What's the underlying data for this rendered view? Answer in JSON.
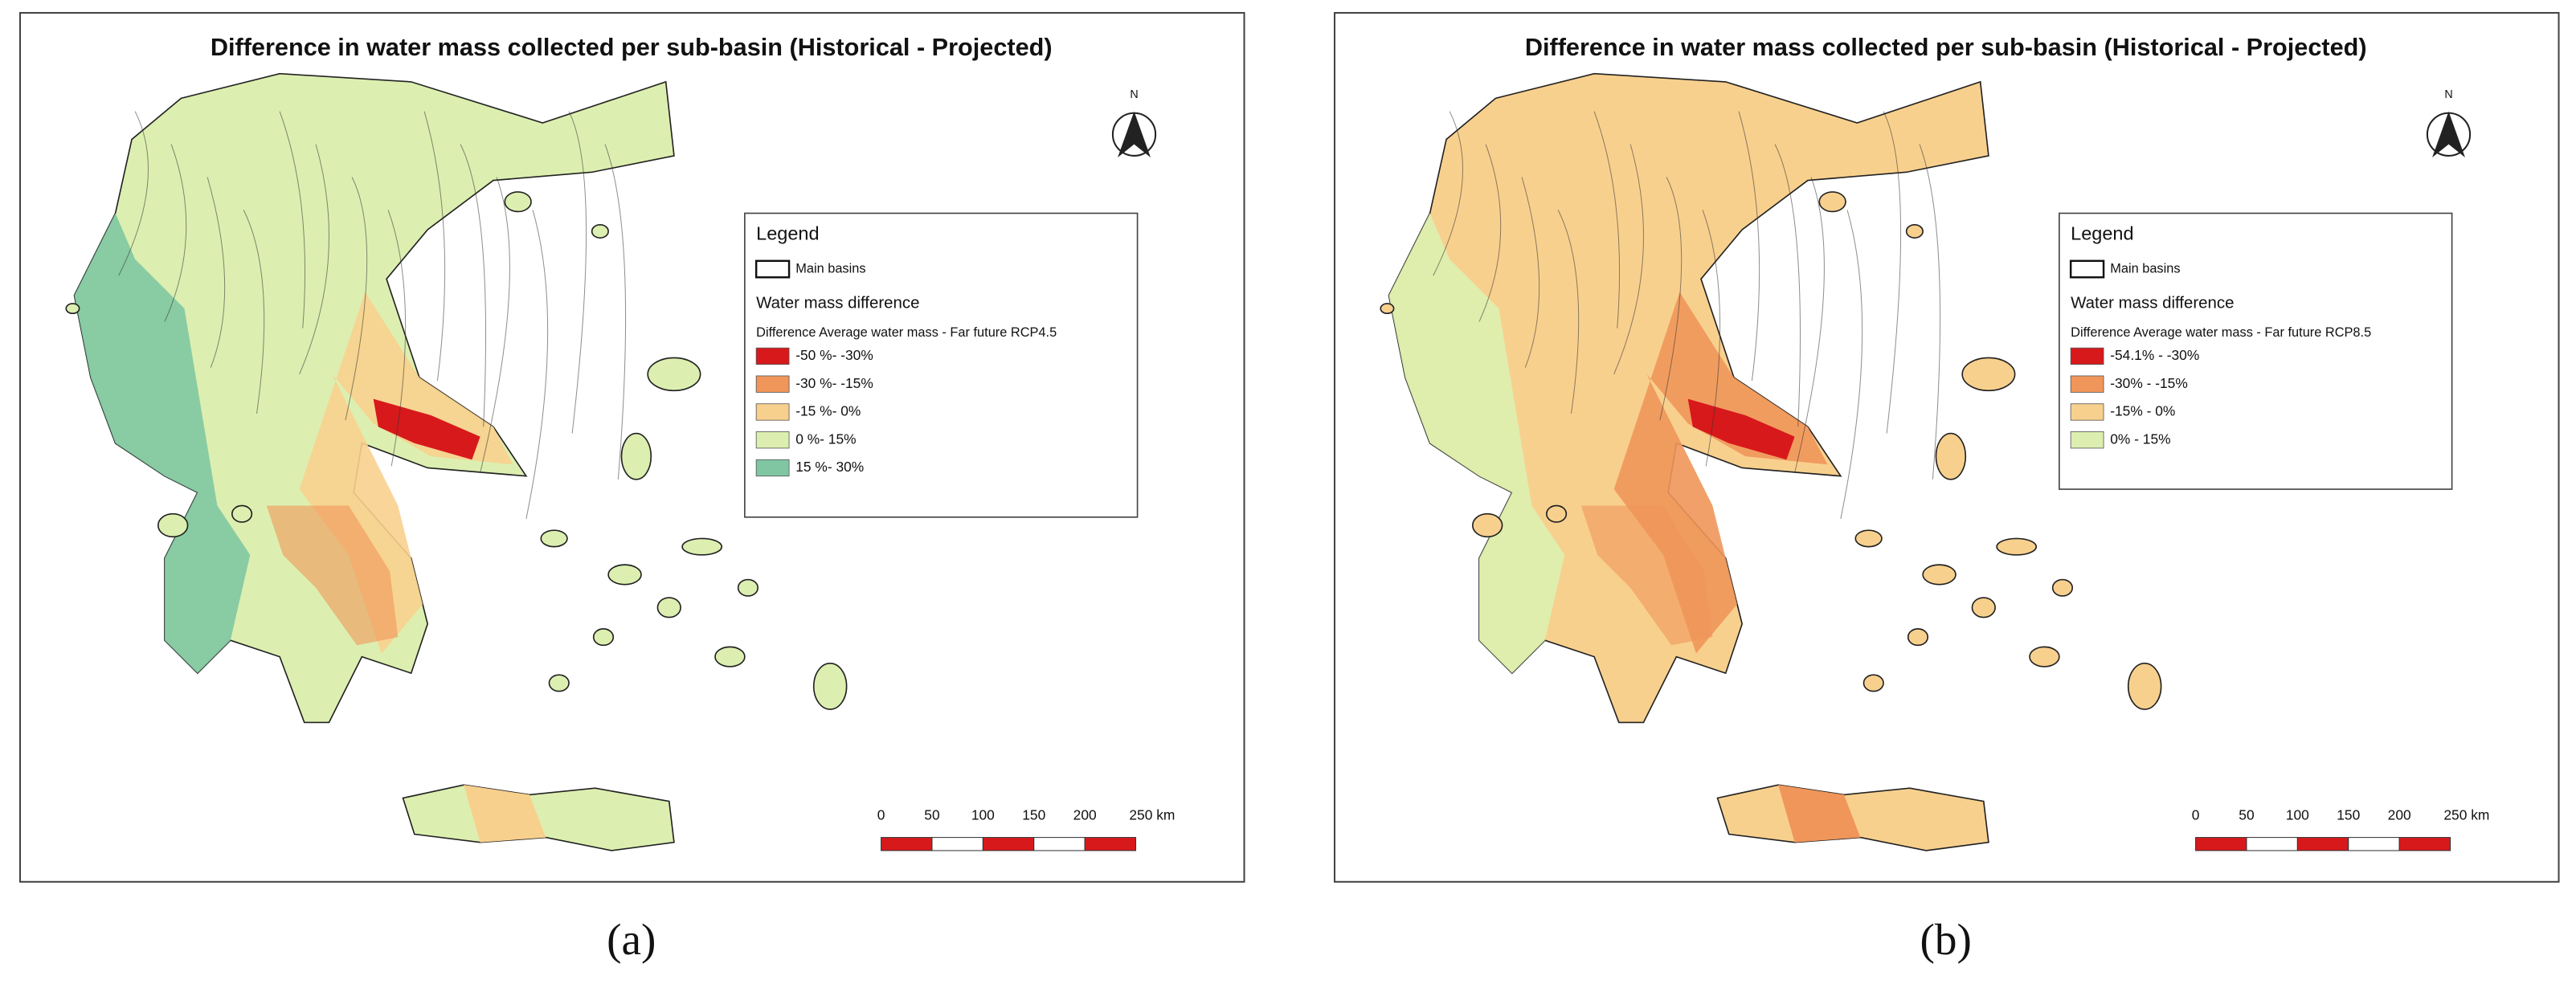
{
  "panels": [
    {
      "title": "Difference in water mass collected per sub-basin (Historical - Projected)",
      "north": "N",
      "legend": {
        "heading": "Legend",
        "outline_label": "Main basins",
        "group": "Water mass difference",
        "layer": "Difference Average water mass - Far future RCP4.5",
        "items": [
          {
            "label": "-50 %- -30%",
            "color": "#d7191c"
          },
          {
            "label": "-30 %- -15%",
            "color": "#f0965a"
          },
          {
            "label": "-15 %- 0%",
            "color": "#f8d08e"
          },
          {
            "label": "0 %- 15%",
            "color": "#dcefb0"
          },
          {
            "label": "15 %- 30%",
            "color": "#80c6a2"
          }
        ]
      },
      "scale_bar": {
        "ticks": [
          0,
          50,
          100,
          150,
          200,
          {
            "value": 250,
            "label": "250 km"
          }
        ]
      },
      "caption": "(a)"
    },
    {
      "title": "Difference in water mass collected per sub-basin (Historical - Projected)",
      "north": "N",
      "legend": {
        "heading": "Legend",
        "outline_label": "Main basins",
        "group": "Water mass difference",
        "layer": "Difference Average water mass - Far future RCP8.5",
        "items": [
          {
            "label": "-54.1% - -30%",
            "color": "#d7191c"
          },
          {
            "label": "-30% - -15%",
            "color": "#f0965a"
          },
          {
            "label": "-15% - 0%",
            "color": "#f8d08e"
          },
          {
            "label": "0% - 15%",
            "color": "#dcefb0"
          }
        ]
      },
      "scale_bar": {
        "ticks": [
          0,
          50,
          100,
          150,
          200,
          {
            "value": 250,
            "label": "250 km"
          }
        ]
      },
      "caption": "(b)"
    }
  ]
}
